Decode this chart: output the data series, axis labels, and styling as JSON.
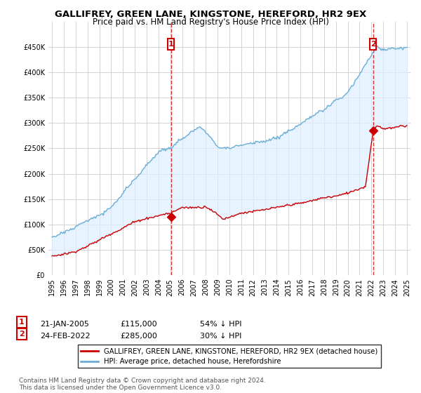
{
  "title": "GALLIFREY, GREEN LANE, KINGSTONE, HEREFORD, HR2 9EX",
  "subtitle": "Price paid vs. HM Land Registry's House Price Index (HPI)",
  "legend_line1": "GALLIFREY, GREEN LANE, KINGSTONE, HEREFORD, HR2 9EX (detached house)",
  "legend_line2": "HPI: Average price, detached house, Herefordshire",
  "annotation1": {
    "num": "1",
    "date": "21-JAN-2005",
    "price": "£115,000",
    "desc": "54% ↓ HPI"
  },
  "annotation2": {
    "num": "2",
    "date": "24-FEB-2022",
    "price": "£285,000",
    "desc": "30% ↓ HPI"
  },
  "footnote": "Contains HM Land Registry data © Crown copyright and database right 2024.\nThis data is licensed under the Open Government Licence v3.0.",
  "hpi_color": "#6baed6",
  "hpi_fill_color": "#ddeeff",
  "sale_color": "#cc0000",
  "annotation_color": "#cc0000",
  "sale1_x": 2005.05,
  "sale1_y": 115000,
  "sale2_x": 2022.13,
  "sale2_y": 285000,
  "ylim_max": 500000,
  "yticks": [
    0,
    50000,
    100000,
    150000,
    200000,
    250000,
    300000,
    350000,
    400000,
    450000
  ],
  "xlim_min": 1994.7,
  "xlim_max": 2025.3
}
